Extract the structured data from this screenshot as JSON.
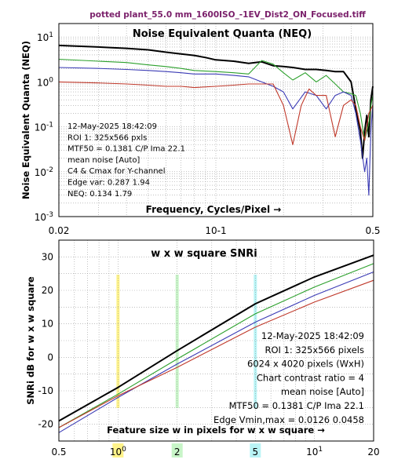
{
  "figure_title": "potted plant_55.0 mm_1600ISO_-1EV_Dist2_ON_Focused.tiff",
  "chart_data": [
    {
      "type": "line",
      "title": "Noise Equivalent Quanta (NEQ)",
      "xlabel": "Frequency, Cycles/Pixel →",
      "ylabel": "Noise Equivalent Quanta (NEQ)",
      "xscale": "log",
      "yscale": "log",
      "xlim": [
        0.02,
        0.5
      ],
      "ylim": [
        0.001,
        20
      ],
      "xticks": [
        {
          "value": 0.02,
          "label": "0.02"
        },
        {
          "value": 0.1,
          "label": "10-1"
        },
        {
          "value": 0.5,
          "label": "0.5"
        }
      ],
      "yticks": [
        {
          "value": 10,
          "label": "10 1"
        },
        {
          "value": 1,
          "label": "10 0"
        },
        {
          "value": 0.1,
          "label": "10 -1"
        },
        {
          "value": 0.01,
          "label": "10 -2"
        },
        {
          "value": 0.001,
          "label": "10 -3"
        }
      ],
      "grid": true,
      "series": [
        {
          "color": "#000000",
          "x": [
            0.02,
            0.03,
            0.04,
            0.05,
            0.06,
            0.07,
            0.08,
            0.09,
            0.1,
            0.12,
            0.14,
            0.16,
            0.18,
            0.2,
            0.22,
            0.25,
            0.28,
            0.31,
            0.34,
            0.37,
            0.4,
            0.42,
            0.44,
            0.45,
            0.46,
            0.47,
            0.48,
            0.49,
            0.5
          ],
          "y": [
            6.5,
            6.0,
            5.6,
            5.2,
            4.6,
            4.2,
            3.9,
            3.5,
            3.1,
            2.9,
            2.6,
            2.8,
            2.3,
            2.2,
            2.1,
            1.9,
            1.9,
            1.8,
            1.7,
            1.7,
            1.0,
            0.25,
            0.08,
            0.02,
            0.08,
            0.18,
            0.06,
            0.4,
            0.8
          ]
        },
        {
          "color": "#2ca02c",
          "x": [
            0.02,
            0.03,
            0.04,
            0.05,
            0.06,
            0.07,
            0.08,
            0.1,
            0.12,
            0.14,
            0.16,
            0.18,
            0.2,
            0.22,
            0.25,
            0.28,
            0.31,
            0.34,
            0.37,
            0.4,
            0.42,
            0.44,
            0.46,
            0.47,
            0.48,
            0.49,
            0.5
          ],
          "y": [
            3.2,
            2.9,
            2.7,
            2.4,
            2.2,
            2.0,
            1.8,
            1.7,
            1.6,
            1.5,
            3.0,
            2.5,
            1.6,
            1.1,
            1.6,
            1.0,
            1.4,
            0.9,
            0.6,
            0.55,
            0.5,
            0.2,
            0.05,
            0.08,
            0.12,
            0.3,
            0.5
          ]
        },
        {
          "color": "#3b3bb5",
          "x": [
            0.02,
            0.03,
            0.04,
            0.05,
            0.06,
            0.07,
            0.08,
            0.1,
            0.12,
            0.14,
            0.16,
            0.18,
            0.2,
            0.22,
            0.25,
            0.28,
            0.31,
            0.34,
            0.37,
            0.4,
            0.42,
            0.44,
            0.46,
            0.47,
            0.48,
            0.49,
            0.5
          ],
          "y": [
            2.1,
            2.0,
            1.9,
            1.8,
            1.7,
            1.6,
            1.5,
            1.5,
            1.4,
            1.3,
            1.0,
            0.8,
            0.6,
            0.25,
            0.6,
            0.5,
            0.25,
            0.5,
            0.6,
            0.5,
            0.2,
            0.05,
            0.01,
            0.02,
            0.003,
            0.08,
            0.3
          ]
        },
        {
          "color": "#c0392b",
          "x": [
            0.02,
            0.03,
            0.04,
            0.05,
            0.06,
            0.07,
            0.08,
            0.1,
            0.12,
            0.14,
            0.16,
            0.18,
            0.2,
            0.22,
            0.24,
            0.26,
            0.28,
            0.31,
            0.34,
            0.37,
            0.4,
            0.42,
            0.44,
            0.46,
            0.48,
            0.5
          ],
          "y": [
            1.0,
            0.95,
            0.9,
            0.85,
            0.8,
            0.8,
            0.75,
            0.8,
            0.85,
            0.9,
            0.9,
            0.9,
            0.3,
            0.04,
            0.3,
            0.7,
            0.5,
            0.5,
            0.06,
            0.3,
            0.4,
            0.3,
            0.1,
            0.05,
            0.2,
            0.3
          ]
        }
      ],
      "annotations": [
        "12-May-2025 18:42:09",
        "ROI 1:  325x566 pxls",
        "MTF50 = 0.1381 C/P  Ima 22.1",
        "mean noise  [Auto]",
        "C4 & Cmax  for Y-channel",
        "Edge var:  0.287  1.94",
        "NEQ:      0.134  1.79"
      ]
    },
    {
      "type": "line",
      "title": "w x w square SNRi",
      "xlabel": "Feature size w in pixels for w x w square →",
      "ylabel": "SNRi dB for w x w square",
      "xscale": "log",
      "xlim": [
        0.5,
        20
      ],
      "ylim": [
        -25,
        35
      ],
      "xticks": [
        {
          "value": 0.5,
          "label": "0.5"
        },
        {
          "value": 1,
          "label": "10 0"
        },
        {
          "value": 2,
          "label": "2"
        },
        {
          "value": 5,
          "label": "5"
        },
        {
          "value": 10,
          "label": "10 1"
        },
        {
          "value": 20,
          "label": "20"
        }
      ],
      "yticks": [
        -20,
        -10,
        0,
        10,
        20,
        30
      ],
      "grid": true,
      "highlight_bands": [
        {
          "x": 1,
          "color": "#fff38a"
        },
        {
          "x": 2,
          "color": "#c8f5c8"
        },
        {
          "x": 5,
          "color": "#b9f4f6"
        }
      ],
      "series": [
        {
          "color": "#000000",
          "x": [
            0.5,
            1,
            2,
            5,
            10,
            20
          ],
          "y": [
            -19,
            -9,
            2,
            16,
            24,
            30.5
          ]
        },
        {
          "color": "#2ca02c",
          "x": [
            0.5,
            1,
            2,
            5,
            10,
            20
          ],
          "y": [
            -21,
            -11,
            -0.5,
            13,
            21,
            28
          ]
        },
        {
          "color": "#3b3bb5",
          "x": [
            0.5,
            1,
            2,
            5,
            10,
            20
          ],
          "y": [
            -22.5,
            -12,
            -2,
            10.5,
            18.5,
            25.5
          ]
        },
        {
          "color": "#c0392b",
          "x": [
            0.5,
            1,
            2,
            5,
            10,
            20
          ],
          "y": [
            -21,
            -11.5,
            -3,
            9,
            16.5,
            23
          ]
        }
      ],
      "annotations": [
        "12-May-2025 18:42:09",
        "ROI 1:  325x566 pixels",
        "6024 x 4020 pixels (WxH)",
        "Chart contrast ratio = 4",
        "mean noise  [Auto]",
        "MTF50 = 0.1381 C/P  Ima 22.1",
        "Edge Vmin,max = 0.0126 0.0458"
      ]
    }
  ]
}
